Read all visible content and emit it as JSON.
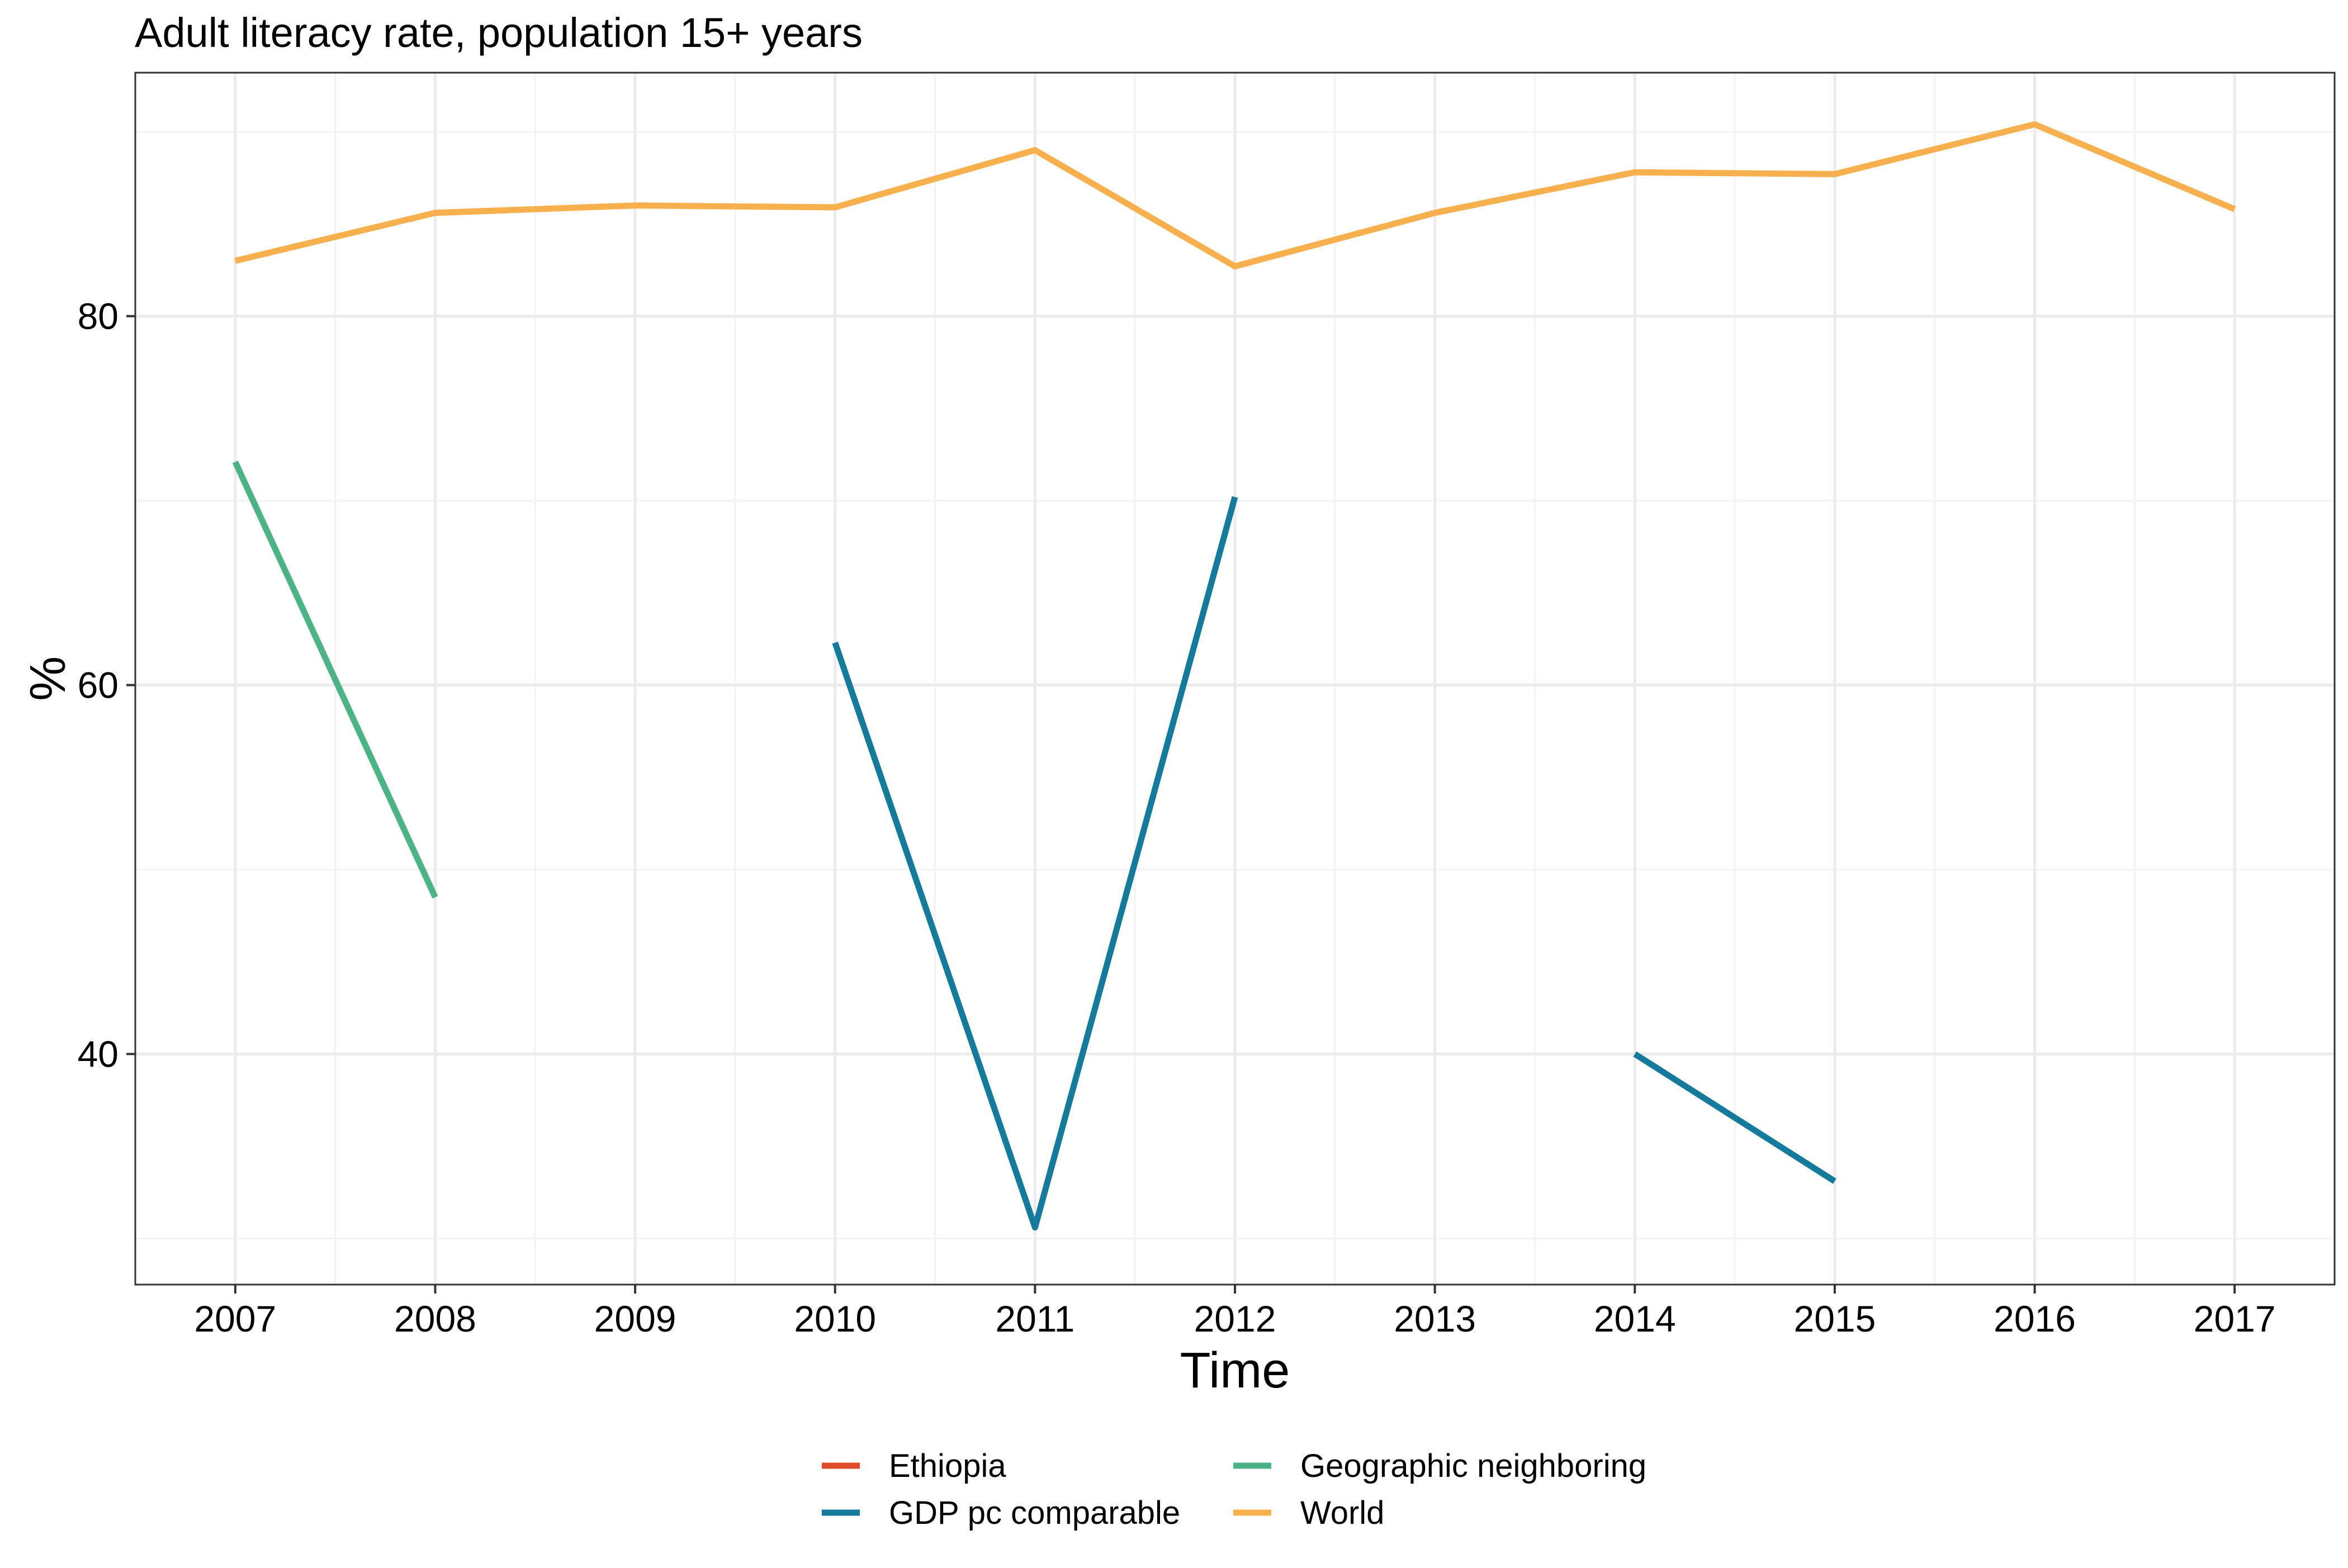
{
  "chart_data": {
    "type": "line",
    "title": "Adult literacy rate, population 15+ years",
    "xlabel": "Time",
    "ylabel": "%",
    "x": [
      2007,
      2008,
      2009,
      2010,
      2011,
      2012,
      2013,
      2014,
      2015,
      2016,
      2017
    ],
    "x_ticks": [
      "2007",
      "2008",
      "2009",
      "2010",
      "2011",
      "2012",
      "2013",
      "2014",
      "2015",
      "2016",
      "2017"
    ],
    "y_ticks": [
      "40",
      "60",
      "80"
    ],
    "xlim": [
      2006.5,
      2017.5
    ],
    "ylim": [
      27.5,
      93.2
    ],
    "grid": true,
    "legend_position": "bottom",
    "series": [
      {
        "name": "Ethiopia",
        "color": "#E04B2A",
        "values": [
          null,
          null,
          null,
          null,
          null,
          null,
          null,
          null,
          null,
          null,
          null
        ]
      },
      {
        "name": "GDP pc comparable",
        "color": "#157A9B",
        "values": [
          null,
          null,
          null,
          62.3,
          30.6,
          70.2,
          null,
          40.0,
          33.1,
          null,
          null
        ]
      },
      {
        "name": "Geographic neighboring",
        "color": "#4CB386",
        "values": [
          72.1,
          48.5,
          null,
          null,
          null,
          null,
          null,
          null,
          null,
          null,
          null
        ]
      },
      {
        "name": "World",
        "color": "#F8B04F",
        "values": [
          83.0,
          85.6,
          86.0,
          85.9,
          89.0,
          82.7,
          85.6,
          87.8,
          87.7,
          90.4,
          85.8
        ]
      }
    ]
  }
}
